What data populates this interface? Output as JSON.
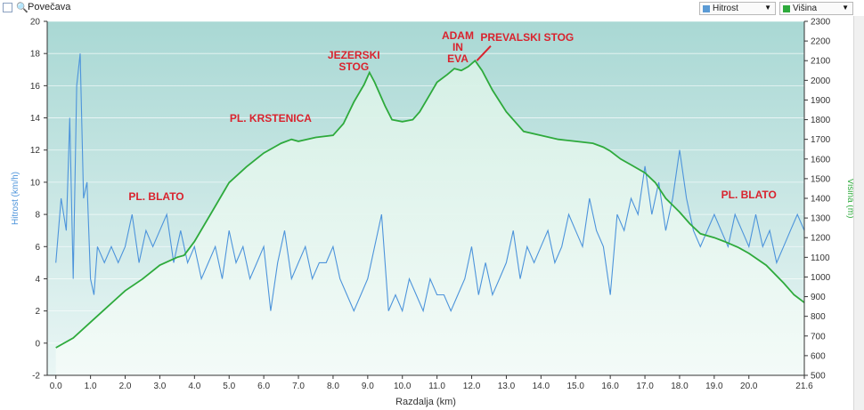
{
  "toolbar": {
    "zoom_label": "Povečava",
    "zoom_icon": "magnifier-icon",
    "speed_select": {
      "value": "Hitrost",
      "color": "#5b9bd5"
    },
    "alt_select": {
      "value": "Višina",
      "color": "#2eaa3c"
    }
  },
  "chart_data": {
    "type": "line",
    "xlabel": "Razdalja   (km)",
    "ylabel_left": "Hitrost   (km/h)",
    "ylabel_right": "Višina   (m)",
    "xlim": [
      -0.25,
      21.6
    ],
    "ylim_left": [
      -2,
      20
    ],
    "ylim_right": [
      500,
      2300
    ],
    "grid": true,
    "x_ticks": [
      "0.0",
      "1.0",
      "2.0",
      "3.0",
      "4.0",
      "5.0",
      "6.0",
      "7.0",
      "8.0",
      "9.0",
      "10.0",
      "11.0",
      "12.0",
      "13.0",
      "14.0",
      "15.0",
      "16.0",
      "17.0",
      "18.0",
      "19.0",
      "20.0",
      "21.6"
    ],
    "x_tick_values": [
      0,
      1,
      2,
      3,
      4,
      5,
      6,
      7,
      8,
      9,
      10,
      11,
      12,
      13,
      14,
      15,
      16,
      17,
      18,
      19,
      20,
      21.6
    ],
    "left_ticks": [
      -2,
      0,
      2,
      4,
      6,
      8,
      10,
      12,
      14,
      16,
      18,
      20
    ],
    "right_ticks": [
      500,
      600,
      700,
      800,
      900,
      1000,
      1100,
      1200,
      1300,
      1400,
      1500,
      1600,
      1700,
      1800,
      1900,
      2000,
      2100,
      2200,
      2300
    ],
    "series": [
      {
        "name": "Višina",
        "axis": "right",
        "color": "#2eaa3c",
        "x": [
          0,
          0.5,
          1,
          1.5,
          2,
          2.5,
          3,
          3.5,
          3.7,
          4,
          4.5,
          5,
          5.5,
          6,
          6.3,
          6.5,
          6.8,
          7,
          7.5,
          8,
          8.3,
          8.6,
          8.9,
          9.05,
          9.2,
          9.5,
          9.7,
          10,
          10.3,
          10.5,
          10.8,
          11,
          11.3,
          11.5,
          11.7,
          11.9,
          12.1,
          12.3,
          12.6,
          13,
          13.5,
          14,
          14.5,
          15,
          15.5,
          15.8,
          16,
          16.3,
          16.6,
          17,
          17.3,
          17.6,
          18,
          18.3,
          18.6,
          19,
          19.3,
          19.7,
          20,
          20.5,
          21,
          21.3,
          21.6
        ],
        "y": [
          640,
          690,
          770,
          850,
          930,
          990,
          1060,
          1100,
          1110,
          1180,
          1330,
          1480,
          1560,
          1630,
          1660,
          1680,
          1700,
          1690,
          1710,
          1720,
          1780,
          1890,
          1980,
          2040,
          1990,
          1870,
          1800,
          1790,
          1800,
          1840,
          1930,
          1990,
          2030,
          2060,
          2050,
          2070,
          2100,
          2050,
          1950,
          1840,
          1740,
          1720,
          1700,
          1690,
          1680,
          1660,
          1640,
          1600,
          1570,
          1530,
          1480,
          1400,
          1330,
          1270,
          1220,
          1200,
          1180,
          1150,
          1120,
          1060,
          970,
          910,
          870
        ]
      },
      {
        "name": "Hitrost",
        "axis": "left",
        "color": "#4d94db",
        "x": [
          0,
          0.15,
          0.3,
          0.4,
          0.5,
          0.6,
          0.7,
          0.8,
          0.9,
          1.0,
          1.1,
          1.2,
          1.4,
          1.6,
          1.8,
          2.0,
          2.2,
          2.4,
          2.6,
          2.8,
          3.0,
          3.2,
          3.4,
          3.6,
          3.8,
          4.0,
          4.2,
          4.4,
          4.6,
          4.8,
          5.0,
          5.2,
          5.4,
          5.6,
          5.8,
          6.0,
          6.2,
          6.4,
          6.6,
          6.8,
          7.0,
          7.2,
          7.4,
          7.6,
          7.8,
          8.0,
          8.2,
          8.4,
          8.6,
          8.8,
          9.0,
          9.2,
          9.4,
          9.6,
          9.8,
          10.0,
          10.2,
          10.4,
          10.6,
          10.8,
          11.0,
          11.2,
          11.4,
          11.6,
          11.8,
          12.0,
          12.2,
          12.4,
          12.6,
          12.8,
          13.0,
          13.2,
          13.4,
          13.6,
          13.8,
          14.0,
          14.2,
          14.4,
          14.6,
          14.8,
          15.0,
          15.2,
          15.4,
          15.6,
          15.8,
          16.0,
          16.2,
          16.4,
          16.6,
          16.8,
          17.0,
          17.2,
          17.4,
          17.6,
          17.8,
          18.0,
          18.2,
          18.4,
          18.6,
          18.8,
          19.0,
          19.2,
          19.4,
          19.6,
          19.8,
          20.0,
          20.2,
          20.4,
          20.6,
          20.8,
          21.0,
          21.2,
          21.4,
          21.6
        ],
        "y": [
          5,
          9,
          7,
          14,
          4,
          16,
          18,
          9,
          10,
          4,
          3,
          6,
          5,
          6,
          5,
          6,
          8,
          5,
          7,
          6,
          7,
          8,
          5,
          7,
          5,
          6,
          4,
          5,
          6,
          4,
          7,
          5,
          6,
          4,
          5,
          6,
          2,
          5,
          7,
          4,
          5,
          6,
          4,
          5,
          5,
          6,
          4,
          3,
          2,
          3,
          4,
          6,
          8,
          2,
          3,
          2,
          4,
          3,
          2,
          4,
          3,
          3,
          2,
          3,
          4,
          6,
          3,
          5,
          3,
          4,
          5,
          7,
          4,
          6,
          5,
          6,
          7,
          5,
          6,
          8,
          7,
          6,
          9,
          7,
          6,
          3,
          8,
          7,
          9,
          8,
          11,
          8,
          10,
          7,
          9,
          12,
          9,
          7,
          6,
          7,
          8,
          7,
          6,
          8,
          7,
          6,
          8,
          6,
          7,
          5,
          6,
          7,
          8,
          7
        ]
      }
    ],
    "annotations": [
      {
        "text": "PL. BLATO",
        "x": 2.9,
        "y_right": 1390
      },
      {
        "text": "PL. KRSTENICA",
        "x": 6.2,
        "y_right": 1790
      },
      {
        "text": "JEZERSKI\nSTOG",
        "x": 8.6,
        "y_right": 2110
      },
      {
        "text": "ADAM\nIN\nEVA",
        "x": 11.6,
        "y_right": 2210
      },
      {
        "text": "PREVALSKI STOG",
        "x": 13.6,
        "y_right": 2200
      },
      {
        "text": "PL. BLATO",
        "x": 20.0,
        "y_right": 1400
      }
    ]
  }
}
